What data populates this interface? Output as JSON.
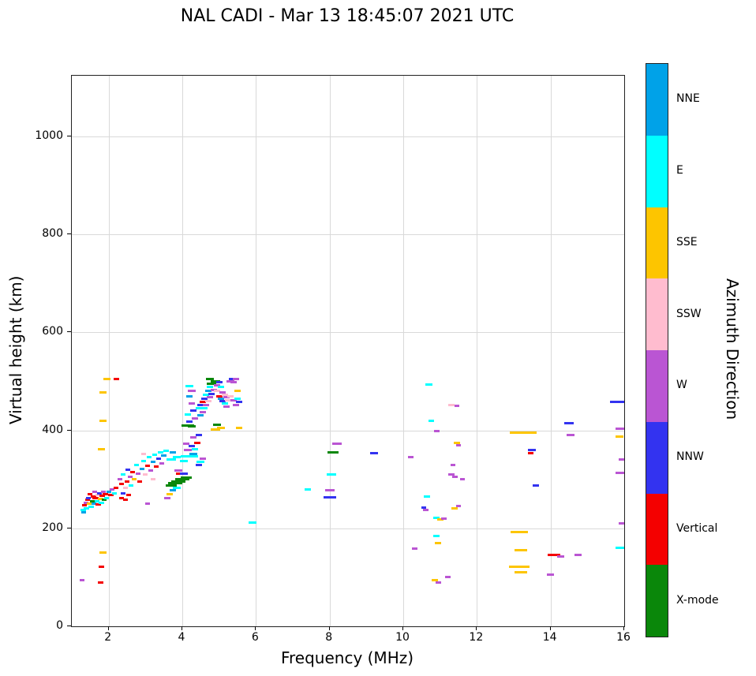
{
  "chart_data": {
    "type": "scatter",
    "title": "NAL CADI - Mar 13 18:45:07 2021 UTC",
    "xlabel": "Frequency (MHz)",
    "ylabel": "Virtual height (km)",
    "legend_title": "Azimuth Direction",
    "legend_position": "right-colorbar",
    "marker": "horizontal-dash",
    "grid": true,
    "grid_color": "#d9d9d9",
    "xlim": [
      1.0,
      16.0
    ],
    "ylim": [
      0,
      1124
    ],
    "xticks": [
      2,
      4,
      6,
      8,
      10,
      12,
      14,
      16
    ],
    "yticks": [
      0,
      200,
      400,
      600,
      800,
      1000
    ],
    "directions": [
      {
        "label": "NNE",
        "color": "#00a2e8"
      },
      {
        "label": "E",
        "color": "#00ffff"
      },
      {
        "label": "SSE",
        "color": "#fdc500"
      },
      {
        "label": "SSW",
        "color": "#ffbccf"
      },
      {
        "label": "W",
        "color": "#ba55d3"
      },
      {
        "label": "NNW",
        "color": "#3333f0"
      },
      {
        "label": "Vertical",
        "color": "#f40000"
      },
      {
        "label": "X-mode",
        "color": "#0a870a"
      }
    ],
    "points": [
      [
        1.3,
        238,
        "E",
        7
      ],
      [
        1.33,
        232,
        "NNE",
        6
      ],
      [
        1.35,
        247,
        "Vertical",
        6
      ],
      [
        1.38,
        252,
        "W",
        6
      ],
      [
        1.4,
        240,
        "E",
        7
      ],
      [
        1.42,
        258,
        "Vertical",
        6
      ],
      [
        1.45,
        262,
        "NNW",
        6
      ],
      [
        1.48,
        250,
        "SSE",
        6
      ],
      [
        1.5,
        270,
        "Vertical",
        6
      ],
      [
        1.52,
        244,
        "E",
        7
      ],
      [
        1.55,
        256,
        "X-mode",
        6
      ],
      [
        1.58,
        265,
        "Vertical",
        7
      ],
      [
        1.6,
        250,
        "NNE",
        6
      ],
      [
        1.62,
        275,
        "W",
        6
      ],
      [
        1.65,
        262,
        "Vertical",
        8
      ],
      [
        1.68,
        255,
        "E",
        6
      ],
      [
        1.7,
        268,
        "SSW",
        6
      ],
      [
        1.72,
        248,
        "Vertical",
        7
      ],
      [
        1.75,
        272,
        "NNW",
        6
      ],
      [
        1.78,
        260,
        "SSE",
        6
      ],
      [
        1.8,
        252,
        "E",
        7
      ],
      [
        1.82,
        266,
        "Vertical",
        7
      ],
      [
        1.85,
        275,
        "W",
        6
      ],
      [
        1.88,
        258,
        "X-mode",
        6
      ],
      [
        1.9,
        270,
        "Vertical",
        7
      ],
      [
        1.95,
        262,
        "E",
        6
      ],
      [
        2.0,
        274,
        "NNE",
        6
      ],
      [
        2.05,
        268,
        "Vertical",
        7
      ],
      [
        2.1,
        280,
        "W",
        6
      ],
      [
        2.15,
        272,
        "E",
        6
      ],
      [
        2.2,
        282,
        "Vertical",
        6
      ],
      [
        1.95,
        505,
        "SSE",
        9
      ],
      [
        2.2,
        505,
        "Vertical",
        7
      ],
      [
        1.85,
        478,
        "SSE",
        9
      ],
      [
        1.85,
        420,
        "SSE",
        9
      ],
      [
        1.8,
        362,
        "SSE",
        9
      ],
      [
        1.85,
        150,
        "SSE",
        9
      ],
      [
        1.8,
        122,
        "Vertical",
        7
      ],
      [
        1.78,
        90,
        "Vertical",
        7
      ],
      [
        1.28,
        95,
        "W",
        6
      ],
      [
        2.3,
        300,
        "W",
        6
      ],
      [
        2.35,
        262,
        "Vertical",
        6
      ],
      [
        2.35,
        290,
        "Vertical",
        6
      ],
      [
        2.4,
        310,
        "E",
        6
      ],
      [
        2.4,
        272,
        "NNW",
        6
      ],
      [
        2.45,
        282,
        "SSW",
        6
      ],
      [
        2.45,
        258,
        "Vertical",
        6
      ],
      [
        2.5,
        295,
        "Vertical",
        6
      ],
      [
        2.52,
        320,
        "NNW",
        6
      ],
      [
        2.55,
        268,
        "Vertical",
        6
      ],
      [
        2.58,
        305,
        "W",
        6
      ],
      [
        2.6,
        288,
        "E",
        6
      ],
      [
        2.65,
        315,
        "Vertical",
        6
      ],
      [
        2.7,
        300,
        "SSE",
        6
      ],
      [
        2.75,
        330,
        "E",
        6
      ],
      [
        2.8,
        312,
        "W",
        6
      ],
      [
        2.85,
        296,
        "Vertical",
        6
      ],
      [
        2.9,
        322,
        "NNE",
        6
      ],
      [
        2.95,
        338,
        "E",
        6
      ],
      [
        2.95,
        352,
        "SSW",
        6
      ],
      [
        3.0,
        310,
        "SSW",
        6
      ],
      [
        3.05,
        328,
        "Vertical",
        6
      ],
      [
        3.05,
        250,
        "W",
        6
      ],
      [
        3.1,
        345,
        "E",
        6
      ],
      [
        3.15,
        318,
        "W",
        6
      ],
      [
        3.2,
        335,
        "NNE",
        6
      ],
      [
        3.2,
        300,
        "SSW",
        6
      ],
      [
        3.25,
        350,
        "E",
        6
      ],
      [
        3.3,
        326,
        "Vertical",
        6
      ],
      [
        3.35,
        342,
        "NNW",
        6
      ],
      [
        3.4,
        355,
        "E",
        7
      ],
      [
        3.45,
        332,
        "W",
        6
      ],
      [
        3.5,
        348,
        "NNE",
        7
      ],
      [
        3.55,
        358,
        "E",
        7
      ],
      [
        3.6,
        262,
        "W",
        8
      ],
      [
        3.65,
        270,
        "SSE",
        8
      ],
      [
        3.7,
        288,
        "X-mode",
        14
      ],
      [
        3.75,
        278,
        "NNE",
        8
      ],
      [
        3.8,
        292,
        "X-mode",
        18
      ],
      [
        3.85,
        282,
        "E",
        10
      ],
      [
        3.9,
        296,
        "X-mode",
        18
      ],
      [
        3.95,
        312,
        "Vertical",
        12
      ],
      [
        4.0,
        300,
        "X-mode",
        18
      ],
      [
        4.05,
        312,
        "NNW",
        10
      ],
      [
        4.1,
        304,
        "X-mode",
        14
      ],
      [
        3.9,
        318,
        "W",
        10
      ],
      [
        3.7,
        340,
        "E",
        12
      ],
      [
        3.85,
        345,
        "E",
        10
      ],
      [
        3.75,
        355,
        "NNE",
        8
      ],
      [
        4.2,
        347,
        "E",
        22
      ],
      [
        4.05,
        338,
        "E",
        10
      ],
      [
        4.3,
        352,
        "NNE",
        10
      ],
      [
        4.15,
        360,
        "W",
        10
      ],
      [
        4.25,
        368,
        "NNW",
        8
      ],
      [
        4.35,
        362,
        "E",
        8
      ],
      [
        4.1,
        372,
        "W",
        8
      ],
      [
        4.4,
        375,
        "Vertical",
        8
      ],
      [
        4.3,
        385,
        "W",
        8
      ],
      [
        4.45,
        390,
        "NNW",
        8
      ],
      [
        4.15,
        410,
        "X-mode",
        16
      ],
      [
        4.25,
        408,
        "X-mode",
        10
      ],
      [
        4.2,
        418,
        "NNW",
        8
      ],
      [
        4.35,
        425,
        "W",
        8
      ],
      [
        4.15,
        432,
        "E",
        8
      ],
      [
        4.3,
        440,
        "NNW",
        8
      ],
      [
        4.25,
        455,
        "W",
        8
      ],
      [
        4.2,
        470,
        "NNE",
        8
      ],
      [
        4.25,
        480,
        "W",
        10
      ],
      [
        4.2,
        490,
        "E",
        10
      ],
      [
        4.45,
        445,
        "E",
        8
      ],
      [
        4.5,
        430,
        "NNE",
        8
      ],
      [
        4.55,
        438,
        "W",
        8
      ],
      [
        4.5,
        452,
        "NNW",
        8
      ],
      [
        4.6,
        445,
        "E",
        8
      ],
      [
        4.55,
        458,
        "Vertical",
        8
      ],
      [
        4.65,
        452,
        "W",
        8
      ],
      [
        4.6,
        465,
        "NNW",
        8
      ],
      [
        4.7,
        460,
        "SSW",
        8
      ],
      [
        4.65,
        472,
        "E",
        8
      ],
      [
        4.75,
        468,
        "W",
        8
      ],
      [
        4.7,
        480,
        "NNE",
        8
      ],
      [
        4.8,
        475,
        "NNW",
        8
      ],
      [
        4.75,
        488,
        "E",
        8
      ],
      [
        4.85,
        482,
        "W",
        8
      ],
      [
        4.8,
        495,
        "X-mode",
        12
      ],
      [
        4.9,
        500,
        "X-mode",
        12
      ],
      [
        4.75,
        505,
        "X-mode",
        10
      ],
      [
        4.95,
        492,
        "W",
        8
      ],
      [
        5.0,
        498,
        "NNW",
        8
      ],
      [
        4.95,
        480,
        "SSW",
        8
      ],
      [
        5.05,
        488,
        "E",
        8
      ],
      [
        5.0,
        470,
        "Vertical",
        8
      ],
      [
        5.1,
        478,
        "W",
        8
      ],
      [
        5.05,
        465,
        "NNE",
        8
      ],
      [
        5.15,
        472,
        "SSW",
        8
      ],
      [
        5.1,
        460,
        "NNW",
        8
      ],
      [
        5.2,
        468,
        "W",
        8
      ],
      [
        5.15,
        455,
        "E",
        8
      ],
      [
        5.25,
        462,
        "SSW",
        8
      ],
      [
        5.2,
        448,
        "W",
        8
      ],
      [
        5.3,
        500,
        "W",
        10
      ],
      [
        5.35,
        505,
        "NNW",
        8
      ],
      [
        5.4,
        498,
        "W",
        8
      ],
      [
        5.45,
        505,
        "W",
        8
      ],
      [
        5.3,
        470,
        "SSW",
        8
      ],
      [
        5.4,
        462,
        "W",
        8
      ],
      [
        5.5,
        480,
        "SSE",
        8
      ],
      [
        5.45,
        452,
        "W",
        8
      ],
      [
        5.55,
        458,
        "NNW",
        8
      ],
      [
        5.5,
        465,
        "E",
        8
      ],
      [
        4.9,
        402,
        "SSE",
        12
      ],
      [
        5.05,
        405,
        "SSE",
        10
      ],
      [
        4.95,
        412,
        "X-mode",
        10
      ],
      [
        5.55,
        405,
        "SSE",
        8
      ],
      [
        4.5,
        336,
        "E",
        10
      ],
      [
        4.55,
        342,
        "W",
        8
      ],
      [
        4.45,
        330,
        "NNW",
        8
      ],
      [
        5.9,
        212,
        "E",
        10
      ],
      [
        7.4,
        280,
        "E",
        8
      ],
      [
        8.0,
        263,
        "NNW",
        16
      ],
      [
        8.0,
        278,
        "W",
        12
      ],
      [
        8.05,
        310,
        "E",
        12
      ],
      [
        8.1,
        355,
        "X-mode",
        14
      ],
      [
        8.2,
        372,
        "W",
        12
      ],
      [
        9.2,
        353,
        "NNW",
        10
      ],
      [
        10.2,
        345,
        "W",
        7
      ],
      [
        10.3,
        158,
        "W",
        7
      ],
      [
        10.7,
        493,
        "E",
        9
      ],
      [
        10.75,
        420,
        "E",
        7
      ],
      [
        10.9,
        398,
        "W",
        7
      ],
      [
        10.65,
        265,
        "E",
        8
      ],
      [
        10.6,
        238,
        "W",
        7
      ],
      [
        10.55,
        242,
        "NNW",
        6
      ],
      [
        10.9,
        222,
        "E",
        8
      ],
      [
        11.0,
        218,
        "SSE",
        8
      ],
      [
        11.1,
        220,
        "W",
        7
      ],
      [
        10.9,
        185,
        "E",
        8
      ],
      [
        10.95,
        170,
        "SSE",
        8
      ],
      [
        10.85,
        95,
        "SSE",
        8
      ],
      [
        10.95,
        90,
        "W",
        7
      ],
      [
        11.2,
        100,
        "W",
        7
      ],
      [
        11.3,
        310,
        "W",
        8
      ],
      [
        11.4,
        305,
        "W",
        7
      ],
      [
        11.35,
        330,
        "W",
        6
      ],
      [
        11.45,
        375,
        "SSE",
        8
      ],
      [
        11.5,
        370,
        "W",
        6
      ],
      [
        11.4,
        240,
        "SSE",
        8
      ],
      [
        11.5,
        245,
        "W",
        6
      ],
      [
        11.3,
        452,
        "SSW",
        8
      ],
      [
        11.45,
        450,
        "W",
        6
      ],
      [
        11.6,
        300,
        "W",
        6
      ],
      [
        13.25,
        395,
        "SSE",
        34
      ],
      [
        13.15,
        193,
        "SSE",
        22
      ],
      [
        13.2,
        155,
        "SSE",
        16
      ],
      [
        13.15,
        122,
        "SSE",
        26
      ],
      [
        13.2,
        110,
        "SSE",
        16
      ],
      [
        13.5,
        360,
        "NNW",
        10
      ],
      [
        13.45,
        353,
        "Vertical",
        7
      ],
      [
        13.6,
        287,
        "NNW",
        8
      ],
      [
        14.0,
        105,
        "W",
        9
      ],
      [
        14.1,
        145,
        "Vertical",
        16
      ],
      [
        14.28,
        143,
        "W",
        9
      ],
      [
        14.5,
        415,
        "NNW",
        12
      ],
      [
        14.55,
        390,
        "W",
        10
      ],
      [
        14.75,
        145,
        "W",
        9
      ],
      [
        15.8,
        458,
        "NNW",
        18
      ],
      [
        15.9,
        403,
        "W",
        12
      ],
      [
        15.88,
        388,
        "SSE",
        10
      ],
      [
        15.95,
        340,
        "W",
        10
      ],
      [
        15.9,
        313,
        "W",
        12
      ],
      [
        15.95,
        210,
        "W",
        10
      ],
      [
        15.9,
        160,
        "E",
        12
      ]
    ]
  }
}
